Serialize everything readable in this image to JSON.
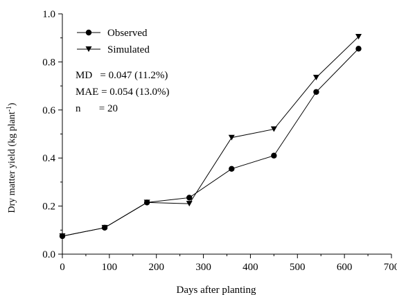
{
  "chart_data": {
    "type": "line",
    "xlabel": "Days after planting",
    "ylabel": "Dry matter yield (kg plant",
    "ylabel_sup": "-1",
    "ylabel_close": ")",
    "xlim": [
      0,
      700
    ],
    "ylim": [
      0.0,
      1.0
    ],
    "x_ticks": [
      0,
      100,
      200,
      300,
      400,
      500,
      600,
      700
    ],
    "x_tick_labels": [
      "0",
      "100",
      "200",
      "300",
      "400",
      "500",
      "600",
      "700"
    ],
    "y_ticks": [
      0.0,
      0.2,
      0.4,
      0.6,
      0.8,
      1.0
    ],
    "y_tick_labels": [
      "0.0",
      "0.2",
      "0.4",
      "0.6",
      "0.8",
      "1.0"
    ],
    "grid": false,
    "legend_position": "top-left",
    "series": [
      {
        "name": "Observed",
        "marker": "circle",
        "x": [
          0,
          90,
          180,
          270,
          360,
          450,
          540,
          630
        ],
        "values": [
          0.075,
          0.11,
          0.215,
          0.235,
          0.355,
          0.41,
          0.675,
          0.855
        ]
      },
      {
        "name": "Simulated",
        "marker": "triangle-down",
        "x": [
          0,
          90,
          180,
          270,
          360,
          450,
          540,
          630
        ],
        "values": [
          0.075,
          0.11,
          0.215,
          0.21,
          0.485,
          0.52,
          0.735,
          0.905
        ]
      }
    ],
    "annotations": [
      "MD   = 0.047 (11.2%)",
      "MAE = 0.054 (13.0%)",
      "n       = 20"
    ],
    "color": "#000000"
  }
}
